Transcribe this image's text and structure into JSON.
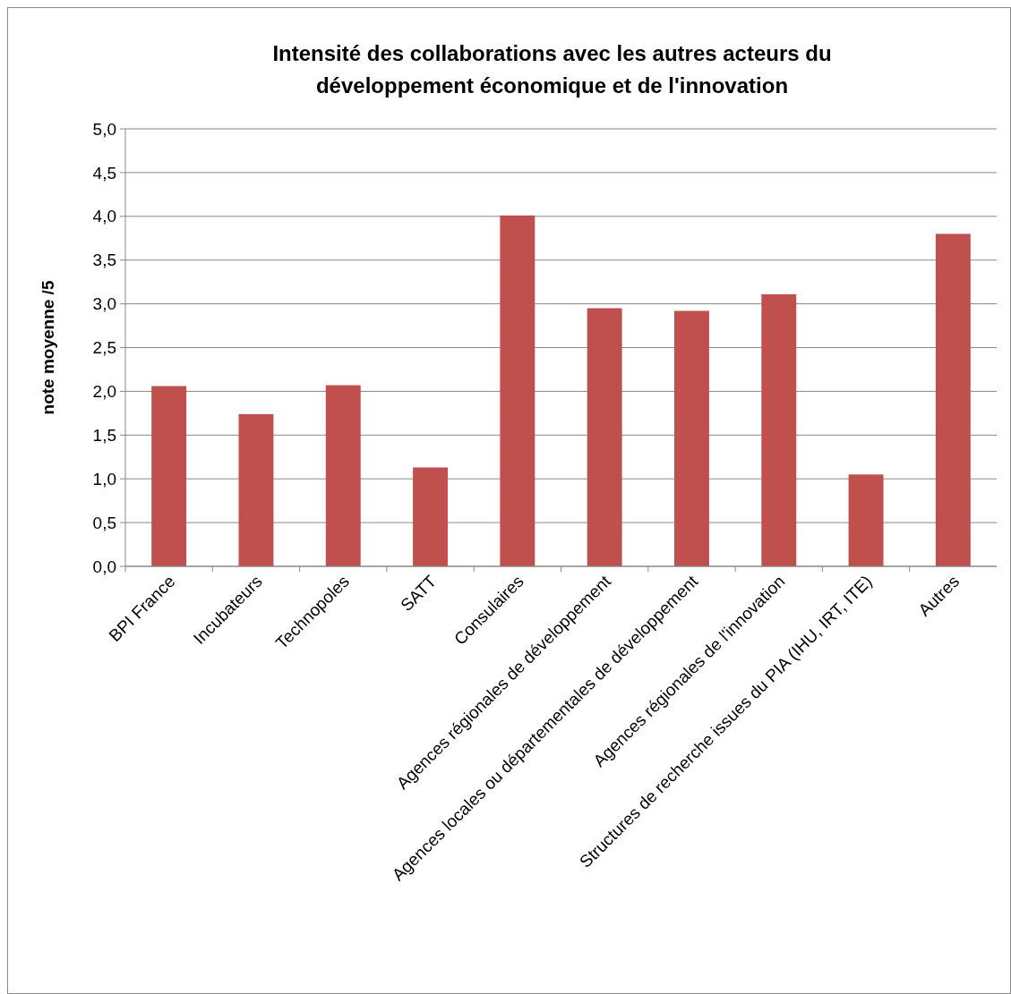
{
  "chart_data": {
    "type": "bar",
    "title": "Intensité des collaborations avec les autres acteurs du développement économique et de l'innovation",
    "ylabel": "note moyenne /5",
    "categories": [
      "BPI France",
      "Incubateurs",
      "Technopoles",
      "SATT",
      "Consulaires",
      "Agences régionales de développement",
      "Agences locales ou départementales de développement",
      "Agences régionales de l'innovation",
      "Structures de recherche issues du PIA (IHU, IRT, ITE)",
      "Autres"
    ],
    "values": [
      2.06,
      1.74,
      2.07,
      1.13,
      4.01,
      2.95,
      2.92,
      3.11,
      1.05,
      3.8
    ],
    "color": "#c0504d",
    "ylim": [
      0,
      5
    ],
    "yticks": [
      {
        "value": 0,
        "label": "0,0"
      },
      {
        "value": 0.5,
        "label": "0,5"
      },
      {
        "value": 1,
        "label": "1,0"
      },
      {
        "value": 1.5,
        "label": "1,5"
      },
      {
        "value": 2,
        "label": "2,0"
      },
      {
        "value": 2.5,
        "label": "2,5"
      },
      {
        "value": 3,
        "label": "3,0"
      },
      {
        "value": 3.5,
        "label": "3,5"
      },
      {
        "value": 4,
        "label": "4,0"
      },
      {
        "value": 4.5,
        "label": "4,5"
      },
      {
        "value": 5,
        "label": "5,0"
      }
    ],
    "grid": true
  }
}
